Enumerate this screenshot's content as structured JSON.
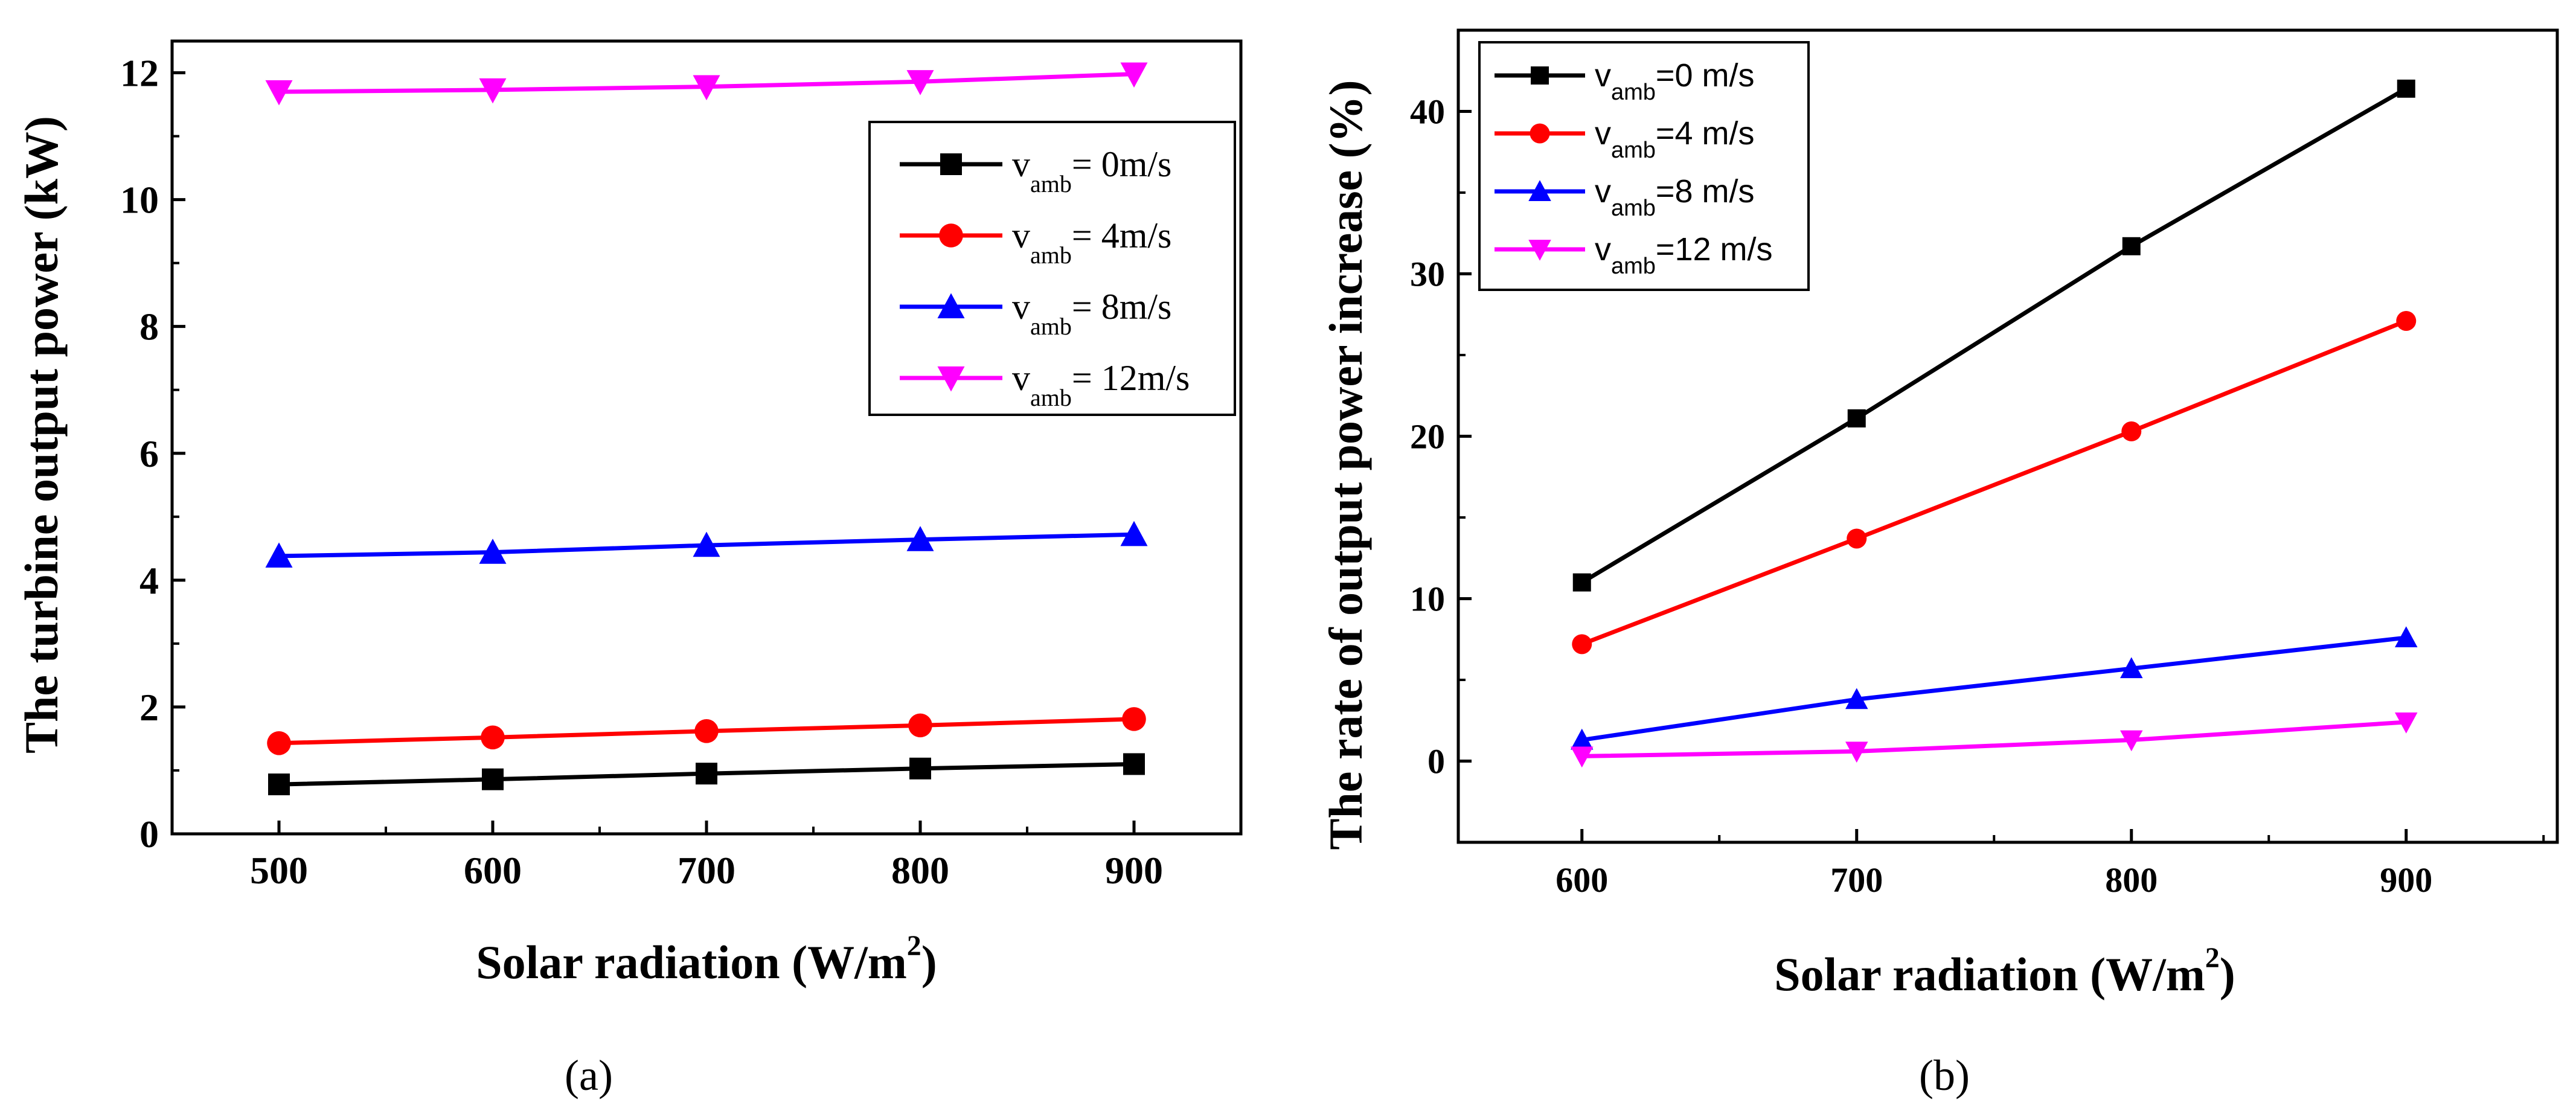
{
  "charts": [
    {
      "caption": "(a)",
      "chart_data": {
        "type": "line",
        "xlabel": "Solar radiation (W/m",
        "xlabel_sup": "2",
        "xlabel_end": ")",
        "ylabel": "The turbine output power (kW)",
        "x": [
          500,
          600,
          700,
          800,
          900
        ],
        "xlim": [
          450,
          950
        ],
        "ylim": [
          0,
          12.5
        ],
        "xticks": [
          "500",
          "600",
          "700",
          "800",
          "900"
        ],
        "yticks": [
          "0",
          "2",
          "4",
          "6",
          "8",
          "10",
          "12"
        ],
        "ytick_values": [
          0,
          2,
          4,
          6,
          8,
          10,
          12
        ],
        "legend_position": "right-upper",
        "series": [
          {
            "name": "v",
            "sub": "amb",
            "suffix": "= 0m/s",
            "color": "#000000",
            "marker": "square",
            "values": [
              0.78,
              0.86,
              0.95,
              1.03,
              1.1
            ]
          },
          {
            "name": "v",
            "sub": "amb",
            "suffix": "= 4m/s",
            "color": "#ff0000",
            "marker": "circle",
            "values": [
              1.43,
              1.52,
              1.62,
              1.71,
              1.81
            ]
          },
          {
            "name": "v",
            "sub": "amb",
            "suffix": "= 8m/s",
            "color": "#0000ff",
            "marker": "triangle-up",
            "values": [
              4.38,
              4.44,
              4.55,
              4.64,
              4.72
            ]
          },
          {
            "name": "v",
            "sub": "amb",
            "suffix": "= 12m/s",
            "color": "#ff00ff",
            "marker": "triangle-down",
            "values": [
              11.7,
              11.73,
              11.78,
              11.86,
              11.98
            ]
          }
        ]
      }
    },
    {
      "caption": "(b)",
      "chart_data": {
        "type": "line",
        "xlabel": "Solar radiation (W/m",
        "xlabel_sup": "2",
        "xlabel_end": ")",
        "ylabel": "The rate of output power increase (%)",
        "x": [
          600,
          700,
          800,
          900
        ],
        "xlim": [
          555,
          955
        ],
        "ylim": [
          -5,
          45
        ],
        "xticks": [
          "600",
          "700",
          "800",
          "900"
        ],
        "yticks": [
          "0",
          "10",
          "20",
          "30",
          "40"
        ],
        "ytick_values": [
          0,
          10,
          20,
          30,
          40
        ],
        "legend_position": "top-left",
        "series": [
          {
            "name": "v",
            "sub": "amb",
            "suffix": "=0 m/s",
            "color": "#000000",
            "marker": "square",
            "values": [
              11.0,
              21.1,
              31.7,
              41.4
            ]
          },
          {
            "name": "v",
            "sub": "amb",
            "suffix": "=4 m/s",
            "color": "#ff0000",
            "marker": "circle",
            "values": [
              7.2,
              13.7,
              20.3,
              27.1
            ]
          },
          {
            "name": "v",
            "sub": "amb",
            "suffix": "=8 m/s",
            "color": "#0000ff",
            "marker": "triangle-up",
            "values": [
              1.3,
              3.8,
              5.7,
              7.6
            ]
          },
          {
            "name": "v",
            "sub": "amb",
            "suffix": "=12 m/s",
            "color": "#ff00ff",
            "marker": "triangle-down",
            "values": [
              0.3,
              0.6,
              1.3,
              2.4
            ]
          }
        ]
      }
    }
  ]
}
